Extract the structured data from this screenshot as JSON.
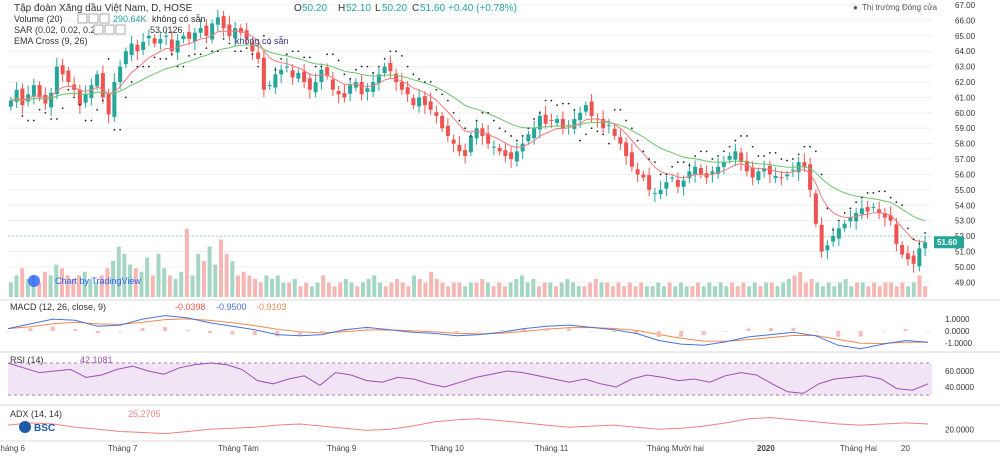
{
  "header": {
    "symbol_line": "Tập đoàn Xăng dầu Việt Nam, D, HOSE",
    "o_label": "O",
    "o_value": "50.20",
    "h_label": "H",
    "h_value": "52.10",
    "l_label": "L",
    "l_value": "50.20",
    "c_label": "C",
    "c_value": "51.60",
    "change": "+0.40 (+0.78%)",
    "market_status": "Thị trường Đóng cửa"
  },
  "indicators": {
    "volume_label": "Volume (20)",
    "volume_value": "290.64K",
    "volume_note": "không có sẵn",
    "sar_label": "SAR (0.02, 0.02, 0.2)",
    "sar_value": "53.0126",
    "ema_label": "EMA Cross (9, 26)",
    "ema_note": "không có sẵn",
    "macd_label": "MACD (12, 26, close, 9)",
    "macd_v1": "-0.0398",
    "macd_v2": "-0.9500",
    "macd_v3": "-0.9103",
    "rsi_label": "RSI (14)",
    "rsi_value": "42.1081",
    "adx_label": "ADX (14, 14)",
    "adx_value": "25.2705"
  },
  "watermark": "Chart by TradingView",
  "logo_text": "BSC",
  "colors": {
    "up": "#26a69a",
    "down": "#ef5350",
    "ema_fast": "#f07c7c",
    "ema_slow": "#6cc36c",
    "sar": "#222222",
    "macd": "#4a72d8",
    "signal": "#f08a50",
    "rsi": "#9c4fb5",
    "adx": "#f08080"
  },
  "chart_data": [
    {
      "type": "candlestick",
      "title": "Tập đoàn Xăng dầu Việt Nam, D, HOSE",
      "ylim": [
        48.5,
        67
      ],
      "yticks": [
        "67.00",
        "66.00",
        "65.00",
        "64.00",
        "63.00",
        "62.00",
        "61.00",
        "60.00",
        "59.00",
        "58.00",
        "57.00",
        "56.00",
        "55.00",
        "54.00",
        "53.00",
        "52.00",
        "51.00",
        "50.00",
        "49.00"
      ],
      "last_price_label": "51.60",
      "x_labels": [
        "háng 6",
        "Tháng 7",
        "Tháng Tám",
        "Tháng 9",
        "Tháng 10",
        "Tháng 11",
        "Tháng Mười hai",
        "2020",
        "Tháng Hai",
        "20"
      ],
      "series": [
        {
          "name": "Close",
          "values": [
            60.8,
            61.5,
            60.5,
            61.2,
            61.8,
            61.0,
            60.6,
            61.3,
            63.0,
            62.5,
            62.0,
            61.5,
            60.5,
            61.2,
            61.8,
            62.5,
            61.0,
            59.9,
            62.0,
            63.0,
            64.0,
            64.5,
            64.0,
            64.6,
            65.0,
            64.5,
            64.8,
            65.0,
            64.0,
            64.7,
            65.0,
            64.8,
            65.2,
            65.5,
            65.0,
            65.8,
            66.2,
            65.5,
            65.0,
            65.5,
            65.2,
            64.8,
            64.0,
            63.5,
            61.5,
            61.8,
            62.5,
            62.8,
            63.0,
            62.3,
            62.6,
            62.0,
            61.5,
            62.0,
            62.8,
            62.4,
            61.5,
            61.2,
            61.0,
            61.8,
            62.0,
            61.2,
            61.6,
            62.0,
            62.5,
            63.0,
            62.7,
            62.0,
            61.5,
            61.2,
            60.5,
            61.0,
            60.5,
            60.2,
            59.8,
            59.0,
            58.5,
            58.0,
            57.5,
            57.2,
            58.5,
            59.0,
            58.5,
            58.0,
            57.8,
            57.5,
            57.2,
            57.0,
            57.5,
            58.0,
            58.6,
            59.0,
            59.8,
            59.3,
            59.5,
            59.6,
            59.0,
            59.2,
            59.6,
            60.0,
            60.5,
            59.8,
            59.6,
            59.0,
            59.2,
            58.5,
            58.0,
            57.2,
            56.5,
            56.0,
            55.8,
            55.0,
            54.8,
            55.0,
            55.5,
            55.8,
            55.2,
            55.6,
            56.2,
            56.5,
            56.0,
            55.8,
            56.2,
            56.5,
            56.8,
            57.2,
            57.5,
            56.8,
            56.2,
            55.8,
            56.2,
            56.4,
            56.0,
            55.9,
            55.8,
            56.0,
            56.3,
            56.8,
            56.5,
            55.0,
            52.8,
            51.0,
            51.4,
            52.0,
            52.5,
            52.8,
            53.2,
            53.5,
            53.8,
            53.6,
            53.9,
            53.5,
            53.2,
            53.0,
            51.5,
            50.8,
            50.5,
            50.2,
            51.2,
            51.6
          ]
        }
      ]
    },
    {
      "type": "bar",
      "title": "Volume (20)",
      "values": [
        0.2,
        0.3,
        0.4,
        0.25,
        0.3,
        0.2,
        0.35,
        0.3,
        0.45,
        0.4,
        0.3,
        0.25,
        0.3,
        0.35,
        0.25,
        0.2,
        0.3,
        0.4,
        0.5,
        0.7,
        0.6,
        0.45,
        0.4,
        0.35,
        0.55,
        0.3,
        0.6,
        0.4,
        0.3,
        0.25,
        0.35,
        0.95,
        0.3,
        0.6,
        0.5,
        0.7,
        0.45,
        0.8,
        0.6,
        0.5,
        0.3,
        0.35,
        0.3,
        0.25,
        0.2,
        0.3,
        0.25,
        0.3,
        0.2,
        0.2,
        0.25,
        0.15,
        0.2,
        0.15,
        0.2,
        0.3,
        0.2,
        0.15,
        0.2,
        0.25,
        0.2,
        0.15,
        0.2,
        0.25,
        0.3,
        0.2,
        0.15,
        0.2,
        0.25,
        0.2,
        0.15,
        0.3,
        0.25,
        0.2,
        0.35,
        0.25,
        0.2,
        0.15,
        0.2,
        0.2,
        0.15,
        0.2,
        0.2,
        0.25,
        0.2,
        0.15,
        0.2,
        0.15,
        0.2,
        0.25,
        0.3,
        0.2,
        0.25,
        0.15,
        0.2,
        0.2,
        0.15,
        0.2,
        0.25,
        0.2,
        0.15,
        0.15,
        0.2,
        0.25,
        0.2,
        0.2,
        0.15,
        0.2,
        0.15,
        0.2,
        0.15,
        0.2,
        0.15,
        0.15,
        0.2,
        0.15,
        0.2,
        0.15,
        0.2,
        0.15,
        0.15,
        0.2,
        0.15,
        0.2,
        0.15,
        0.2,
        0.15,
        0.2,
        0.15,
        0.2,
        0.15,
        0.2,
        0.15,
        0.2,
        0.2,
        0.15,
        0.2,
        0.25,
        0.3,
        0.35,
        0.2,
        0.25,
        0.2,
        0.15,
        0.2,
        0.15,
        0.2,
        0.25,
        0.15,
        0.2,
        0.2,
        0.15,
        0.2,
        0.15,
        0.2,
        0.2,
        0.15,
        0.2,
        0.15,
        0.2,
        0.3,
        0.15
      ]
    },
    {
      "type": "line",
      "title": "MACD (12, 26, close, 9)",
      "ylim": [
        -1.6,
        1.6
      ],
      "yticks": [
        "1.0000",
        "0.0000",
        "-1.0000"
      ],
      "series": [
        {
          "name": "MACD",
          "values": [
            0.2,
            0.6,
            1.0,
            0.9,
            0.4,
            0.5,
            1.0,
            1.3,
            1.1,
            0.7,
            0.4,
            0.1,
            -0.3,
            -0.4,
            -0.3,
            0.1,
            0.3,
            0.1,
            -0.1,
            -0.2,
            -0.4,
            -0.3,
            -0.1,
            0.2,
            0.4,
            0.5,
            0.3,
            0.1,
            -0.2,
            -0.8,
            -1.1,
            -1.2,
            -0.9,
            -0.5,
            -0.3,
            -0.1,
            -0.4,
            -1.2,
            -1.5,
            -1.1,
            -0.8,
            -0.95
          ]
        }
      ]
    },
    {
      "type": "line",
      "title": "RSI (14)",
      "ylim": [
        20,
        80
      ],
      "yticks": [
        "60.0000",
        "40.0000"
      ],
      "series": [
        {
          "name": "RSI",
          "values": [
            70,
            64,
            58,
            60,
            62,
            52,
            55,
            62,
            66,
            60,
            56,
            64,
            68,
            70,
            68,
            62,
            48,
            44,
            50,
            54,
            42,
            58,
            55,
            48,
            46,
            52,
            50,
            44,
            40,
            46,
            52,
            56,
            60,
            58,
            54,
            50,
            46,
            50,
            44,
            40,
            50,
            55,
            52,
            48,
            50,
            46,
            54,
            58,
            55,
            44,
            34,
            32,
            44,
            50,
            52,
            54,
            50,
            38,
            36,
            44
          ]
        }
      ]
    },
    {
      "type": "line",
      "title": "ADX (14, 14)",
      "ylim": [
        10,
        40
      ],
      "yticks": [
        "20.0000"
      ],
      "series": [
        {
          "name": "ADX",
          "values": [
            24,
            26,
            25,
            22,
            20,
            18,
            17,
            16,
            18,
            20,
            21,
            22,
            24,
            25,
            23,
            21,
            19,
            20,
            23,
            27,
            29,
            30,
            28,
            26,
            24,
            22,
            23,
            24,
            22,
            20,
            21,
            23,
            26,
            30,
            31,
            29,
            27,
            25,
            24,
            25,
            26,
            25
          ]
        }
      ]
    }
  ]
}
